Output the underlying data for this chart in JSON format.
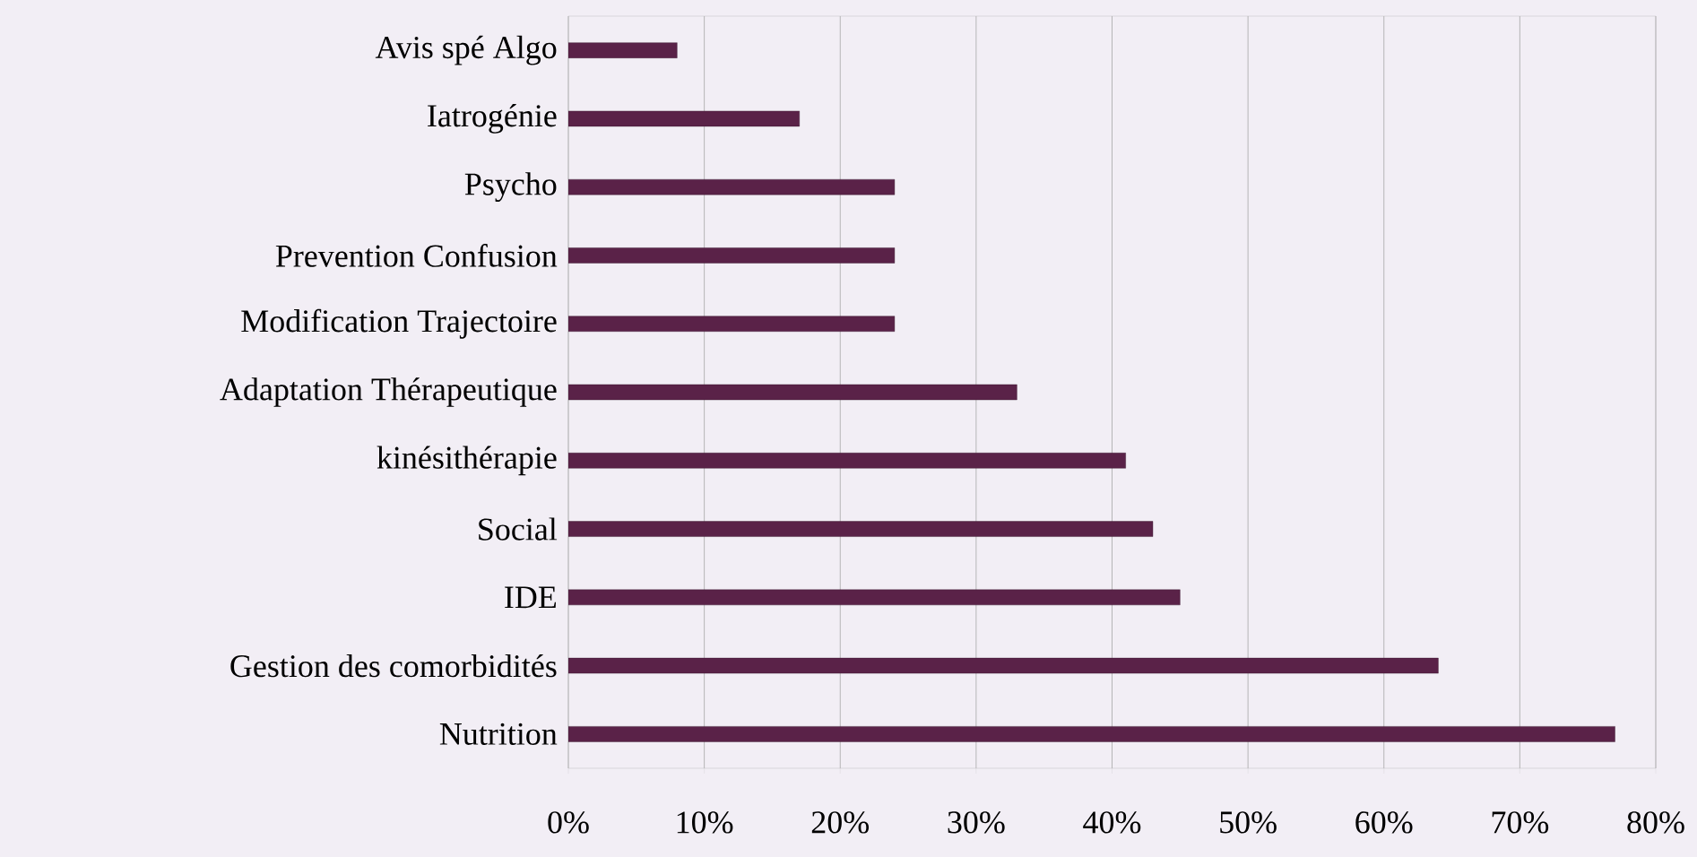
{
  "chart_data": {
    "type": "bar",
    "orientation": "horizontal",
    "categories": [
      "Avis spé Algo",
      "Iatrogénie",
      "Psycho",
      "Prevention Confusion",
      "Modification Trajectoire",
      "Adaptation Thérapeutique",
      "kinésithérapie",
      "Social",
      "IDE",
      "Gestion des comorbidités",
      "Nutrition"
    ],
    "values": [
      8,
      17,
      24,
      24,
      24,
      33,
      41,
      43,
      45,
      64,
      77
    ],
    "color": "#5a2248",
    "xlim": [
      0,
      80
    ],
    "xticks": [
      {
        "value": 0,
        "label": "0%"
      },
      {
        "value": 10,
        "label": "10%"
      },
      {
        "value": 20,
        "label": "20%"
      },
      {
        "value": 30,
        "label": "30%"
      },
      {
        "value": 40,
        "label": "40%"
      },
      {
        "value": 50,
        "label": "50%"
      },
      {
        "value": 60,
        "label": "60%"
      },
      {
        "value": 70,
        "label": "70%"
      },
      {
        "value": 80,
        "label": "80%"
      }
    ],
    "grid": "x"
  }
}
